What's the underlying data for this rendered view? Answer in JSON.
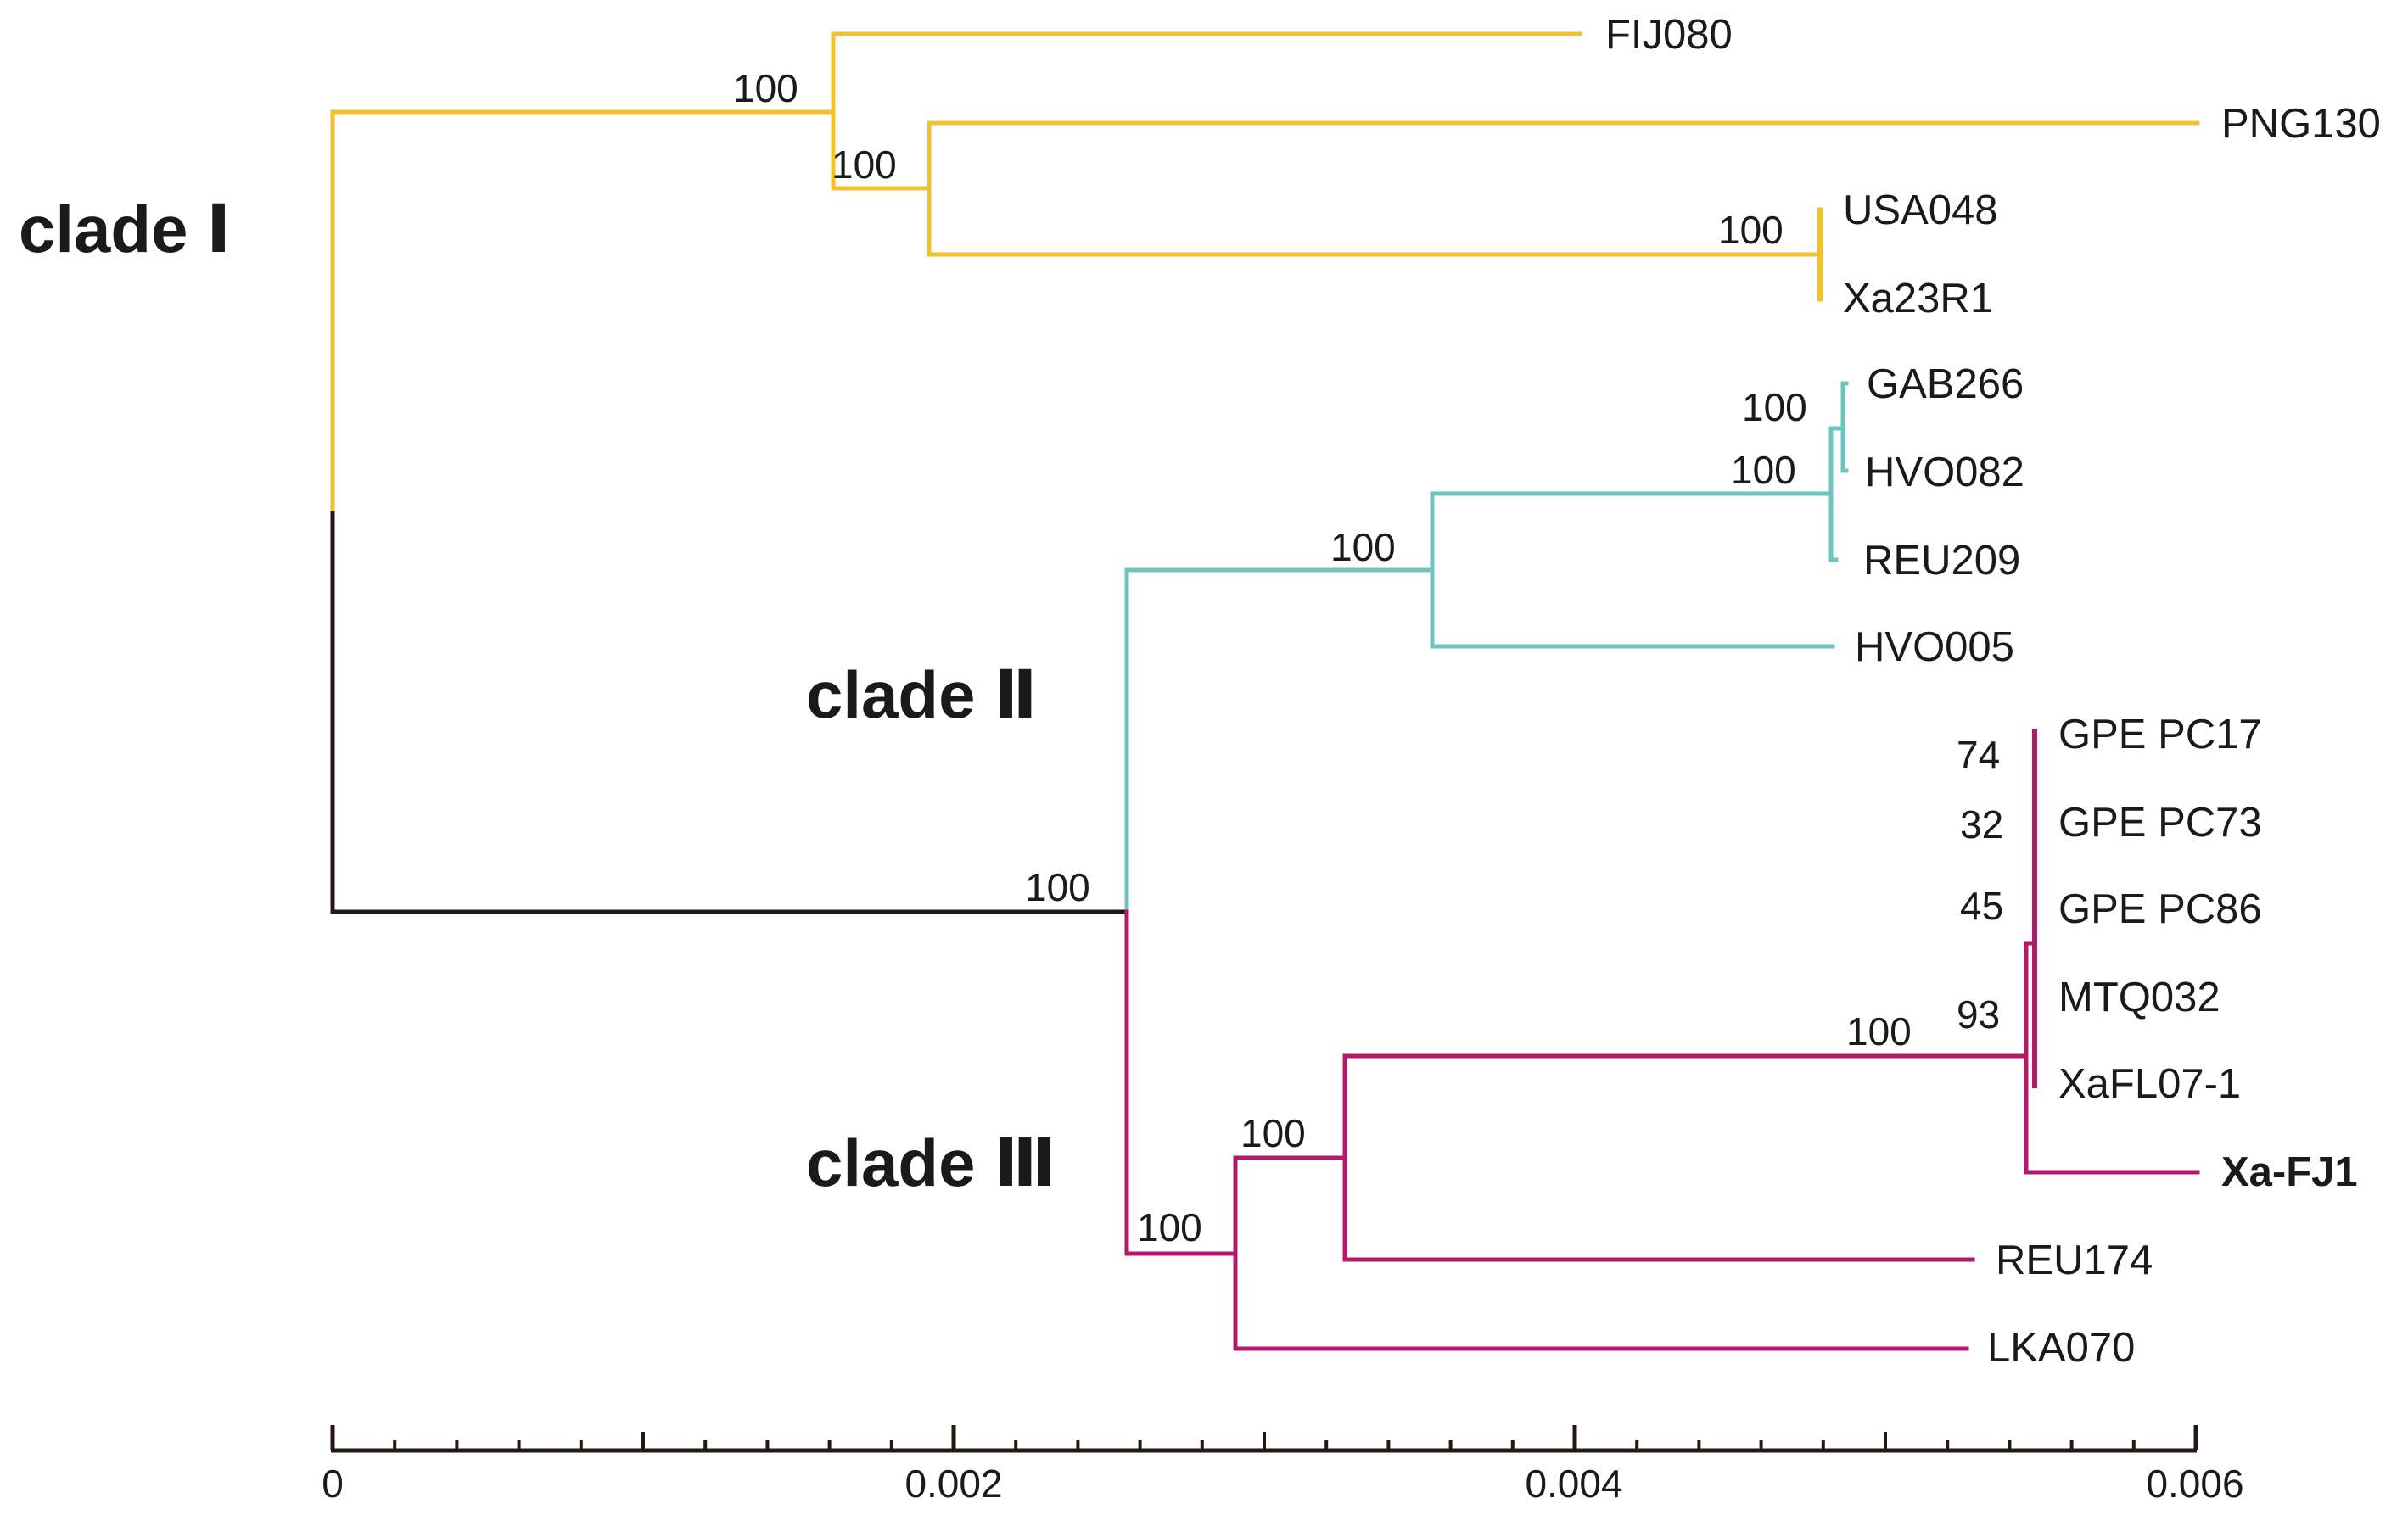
{
  "figure": {
    "type": "phylogenetic-tree",
    "colors": {
      "clade_1": "#F2C12E",
      "clade_2": "#6DC5BF",
      "clade_3": "#B3186B",
      "root": "#231815",
      "axis": "#231815",
      "text": "#1a1a1a"
    },
    "clades": [
      {
        "id": "clade_1",
        "label": "clade Ⅰ"
      },
      {
        "id": "clade_2",
        "label": "clade Ⅱ"
      },
      {
        "id": "clade_3",
        "label": "clade Ⅲ"
      }
    ],
    "leaves": [
      {
        "name": "FIJ080",
        "clade": "clade_1",
        "branch_length_end": 0.00404
      },
      {
        "name": "PNG130",
        "clade": "clade_1",
        "branch_length_end": 0.006
      },
      {
        "name": "USA048",
        "clade": "clade_1",
        "branch_length_end": 0.00488
      },
      {
        "name": "Xa23R1",
        "clade": "clade_1",
        "branch_length_end": 0.00488
      },
      {
        "name": "GAB266",
        "clade": "clade_2",
        "branch_length_end": 0.00496
      },
      {
        "name": "HVO082",
        "clade": "clade_2",
        "branch_length_end": 0.00496
      },
      {
        "name": "REU209",
        "clade": "clade_2",
        "branch_length_end": 0.00492
      },
      {
        "name": "HVO005",
        "clade": "clade_2",
        "branch_length_end": 0.00488
      },
      {
        "name": "GPE PC17",
        "clade": "clade_3",
        "branch_length_end": 0.00552
      },
      {
        "name": "GPE PC73",
        "clade": "clade_3",
        "branch_length_end": 0.00552
      },
      {
        "name": "GPE PC86",
        "clade": "clade_3",
        "branch_length_end": 0.00552
      },
      {
        "name": "MTQ032",
        "clade": "clade_3",
        "branch_length_end": 0.00552
      },
      {
        "name": "XaFL07-1",
        "clade": "clade_3",
        "branch_length_end": 0.00552
      },
      {
        "name": "Xa-FJ1",
        "clade": "clade_3",
        "branch_length_end": 0.006,
        "bold": true
      },
      {
        "name": "REU174",
        "clade": "clade_3",
        "branch_length_end": 0.0053
      },
      {
        "name": "LKA070",
        "clade": "clade_3",
        "branch_length_end": 0.00528
      }
    ],
    "bootstrap_support": [
      {
        "node": "FIJ080+PNG130+USA048+Xa23R1",
        "value": "100"
      },
      {
        "node": "PNG130+USA048+Xa23R1",
        "value": "100"
      },
      {
        "node": "USA048+Xa23R1",
        "value": "100"
      },
      {
        "node": "GAB266+HVO082",
        "value": "100"
      },
      {
        "node": "GAB266+HVO082+REU209",
        "value": "100"
      },
      {
        "node": "clade_2",
        "value": "100"
      },
      {
        "node": "clade_2+clade_3",
        "value": "100"
      },
      {
        "node": "GPE PC17",
        "value": "74"
      },
      {
        "node": "GPE PC73",
        "value": "32"
      },
      {
        "node": "GPE PC86",
        "value": "45"
      },
      {
        "node": "MTQ032+XaFL07-1",
        "value": "93"
      },
      {
        "node": "GPE group+Xa-FJ1",
        "value": "100"
      },
      {
        "node": "GPE group+Xa-FJ1+REU174",
        "value": "100"
      },
      {
        "node": "clade_3",
        "value": "100"
      }
    ],
    "scale_axis": {
      "min": 0,
      "max": 0.006,
      "major_ticks": [
        "0",
        "0.002",
        "0.004",
        "0.006"
      ],
      "minor_tick_step": 0.0002
    }
  }
}
